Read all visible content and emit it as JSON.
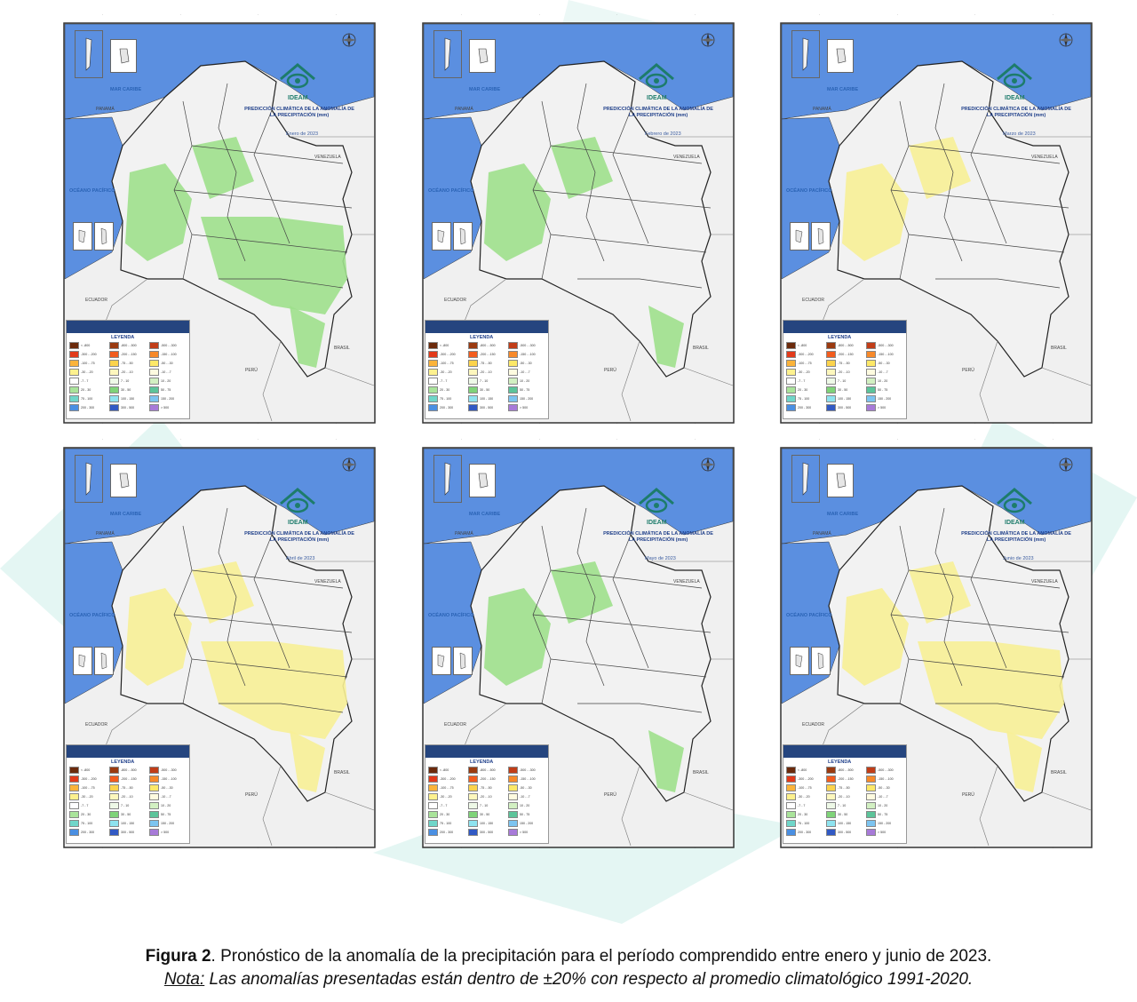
{
  "figure": {
    "caption_label": "Figura 2",
    "caption_text": ". Pronóstico de la anomalía de la precipitación para el período comprendido entre enero y junio de 2023.",
    "note_label": "Nota:",
    "note_text": " Las anomalías presentadas están dentro de ±20% con respecto al promedio climatológico 1991-2020."
  },
  "map_common": {
    "logo_text": "IDEAM",
    "title": "PREDICCIÓN CLIMÁTICA DE LA ANOMALÍA DE LA PRECIPITACIÓN (mm)",
    "mar_caribe": "MAR CARIBE",
    "oceano_pacifico": "OCÉANO PACÍFICO",
    "venezuela": "VENEZUELA",
    "ecuador": "ECUADOR",
    "peru": "PERÚ",
    "brasil": "BRASIL",
    "panama": "PANAMÁ",
    "legend_title": "LEYENDA",
    "legend_items": [
      {
        "label": "< -800",
        "color": "#6b2a0c"
      },
      {
        "label": "-800 - -500",
        "color": "#9a3a10"
      },
      {
        "label": "-500 - -300",
        "color": "#c13d18"
      },
      {
        "label": "-300 - -200",
        "color": "#e23a1a"
      },
      {
        "label": "-200 - -150",
        "color": "#f25c1e"
      },
      {
        "label": "-150 - -100",
        "color": "#f7892a"
      },
      {
        "label": "-100 - -75",
        "color": "#fbb33a"
      },
      {
        "label": "-75 - -50",
        "color": "#fcd34c"
      },
      {
        "label": "-50 - -30",
        "color": "#fde868"
      },
      {
        "label": "-30 - -20",
        "color": "#fdf18e"
      },
      {
        "label": "-20 - -10",
        "color": "#fdf7bd"
      },
      {
        "label": "-10 - -7",
        "color": "#fefbe0"
      },
      {
        "label": "-7 - 7",
        "color": "#ffffff"
      },
      {
        "label": "7 - 10",
        "color": "#eef9e7"
      },
      {
        "label": "10 - 20",
        "color": "#d2f0c2"
      },
      {
        "label": "20 - 30",
        "color": "#a9e39a"
      },
      {
        "label": "30 - 50",
        "color": "#7fd379"
      },
      {
        "label": "50 - 75",
        "color": "#5cc49a"
      },
      {
        "label": "75 - 100",
        "color": "#6fd6c9"
      },
      {
        "label": "100 - 150",
        "color": "#8ee3ef"
      },
      {
        "label": "150 - 200",
        "color": "#7cc4f0"
      },
      {
        "label": "200 - 300",
        "color": "#4a8fe2"
      },
      {
        "label": "300 - 500",
        "color": "#3159c4"
      },
      {
        "label": "> 500",
        "color": "#a77ad8"
      }
    ],
    "colors": {
      "ocean": "#5b8fe0",
      "land": "#f2f2f2",
      "wet": "#9fe08c",
      "dry": "#f7f096"
    }
  },
  "maps": [
    {
      "month_label": "Enero de 2023",
      "anomaly": "wet",
      "coverage": "high"
    },
    {
      "month_label": "Febrero de 2023",
      "anomaly": "wet",
      "coverage": "medium"
    },
    {
      "month_label": "Marzo de 2023",
      "anomaly": "dry",
      "coverage": "low"
    },
    {
      "month_label": "Abril de 2023",
      "anomaly": "dry",
      "coverage": "high"
    },
    {
      "month_label": "Mayo de 2023",
      "anomaly": "wet",
      "coverage": "medium"
    },
    {
      "month_label": "Junio de 2023",
      "anomaly": "dry",
      "coverage": "high"
    }
  ]
}
